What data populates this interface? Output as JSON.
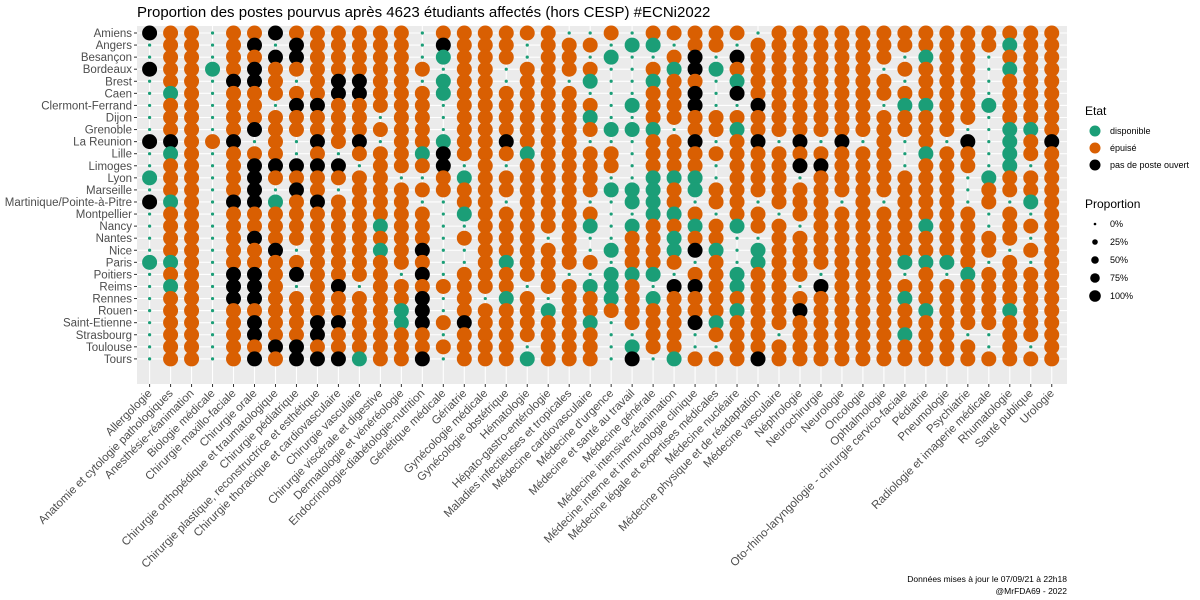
{
  "chart_data": {
    "type": "scatter",
    "title": "Proportion des postes pourvus après 4623 étudiants affectés (hors CESP) #ECNi2022",
    "xlabel": "",
    "ylabel": "",
    "cities": [
      "Amiens",
      "Angers",
      "Besançon",
      "Bordeaux",
      "Brest",
      "Caen",
      "Clermont-Ferrand",
      "Dijon",
      "Grenoble",
      "La Reunion",
      "Lille",
      "Limoges",
      "Lyon",
      "Marseille",
      "Martinique/Pointe-à-Pitre",
      "Montpellier",
      "Nancy",
      "Nantes",
      "Nice",
      "Paris",
      "Poitiers",
      "Reims",
      "Rennes",
      "Rouen",
      "Saint-Etienne",
      "Strasbourg",
      "Toulouse",
      "Tours"
    ],
    "specialties": [
      "Allergologie",
      "Anatomie et cytologie pathologiques",
      "Anesthésie-réanimation",
      "Biologie médicale",
      "Chirurgie maxillo-faciale",
      "Chirurgie orale",
      "Chirurgie orthopédique et traumatologique",
      "Chirurgie pédiatrique",
      "Chirurgie plastique, reconstructrice et esthétique",
      "Chirurgie thoracique et cardiovasculaire",
      "Chirurgie vasculaire",
      "Chirurgie viscérale et digestive",
      "Dermatologie et vénéréologie",
      "Endocrinologie-diabétologie-nutrition",
      "Génétique médicale",
      "Gériatrie",
      "Gynécologie médicale",
      "Gynécologie obstétrique",
      "Hématologie",
      "Hépato-gastro-entérologie",
      "Maladies infectieuses et tropicales",
      "Médecine cardiovasculaire",
      "Médecine d'urgence",
      "Médecine et santé au travail",
      "Médecine générale",
      "Médecine intensive-réanimation",
      "Médecine interne et immunologie clinique",
      "Médecine légale et expertises médicales",
      "Médecine nucléaire",
      "Médecine physique et de réadaptation",
      "Médecine vasculaire",
      "Néphrologie",
      "Neurochirurgie",
      "Neurologie",
      "Oncologie",
      "Ophtalmologie",
      "Oto-rhino-laryngologie - chirurgie cervico-faciale",
      "Pédiatrie",
      "Pneumologie",
      "Psychiatrie",
      "Radiologie et imagerie médicale",
      "Rhumatologie",
      "Santé publique",
      "Urologie"
    ],
    "states": [
      "disponible",
      "épuisé",
      "pas de poste ouvert"
    ],
    "state_colors": {
      "disponible": "#1b9e77",
      "épuisé": "#d95f02",
      "pas de poste ouvert": "#000000"
    },
    "size_legend": {
      "title": "Proportion",
      "labels": [
        "0%",
        "25%",
        "50%",
        "75%",
        "100%"
      ],
      "values": [
        0,
        0.25,
        0.5,
        0.75,
        1
      ]
    },
    "legend_title": "Etat",
    "grid": true,
    "legend_position": "right",
    "caption_line1": "Données mises à jour le 07/09/21 à 22h18",
    "caption_line2": "@MrFDA69 - 2022",
    "matrix_code": [
      "NEE.EENEEEEEE.EEEEEE..E.EEEEE.EEEEEEEEEEEEEE",
      ".EE.EN.NEEEEE.NEEE.EEE.DD.EE.EEEEEEEEEEEEDEE",
      ".EE.EENNEEEEE.DEEE.EE.D..EN.NEEEEEEE.DEE.EEE",
      "NEEDENEEEEEEEE.EE.EEEE..EDNDEEEEEEE.EEEE.DEE",
      ".EE.NNE.ENNEE.DEE.EE.D..DEE.DEEEEEEE.EEE.EEE",
      ".DE.EEEEENNEEEDEEEEEE...EEN.NEEEEEEEEEEE.EEE",
      ".EE.EE.NNEEEEE.EEEEEEE.DEEN..NEEEEE.DDEEDEEE",
      ".EE.EEEEEEE.EE.EEEEEED..EEEEEEEEEEEEEEEE.EEE",
      ".EE.ENEEEEEEEE.EEEEEEEDDD.EEDEEEEEEEEEE..DDE",
      "NNEEN.E.NEN.EEDEENEEE...EEN.EN.N.N.E.E.N.DEN",
      ".DE.EEE.E.EEEDNEEEDEEEE.EEEEEEEEEEEE.DEE.DEE",
      ".EE.ENNNNN.EEEN.E.EEEEE.EEE.EEENNEEE.EEE.D.E",
      "DEE.ENEEEEEE..EDEEEEEE..DDD.EEE.EEEEEEE.DEEE",
      ".EE.EN.NE.EEEEEEEEEEEEDDDEDEEEEEEEEEEEE.EEEE",
      "NDE.NNDENEEEE..EE.EEE..DDE.EE.EEE.E.EEE.E.DE",
      ".EE.EEEEEEEEEE.DEEEEEE..DDE.EE.EEEEEEEEE.E.E",
      ".EE.EEEEEEEDEE..EEEEED.DEEDEDEE.EEEEEDEE.EEE",
      ".EE.ENEEEEEEEE.EEEE.E..EEDEE..EEEEEEEEEEEE.E",
      ".EE.EEN.EEEDEN..EEEEE.DEEDND.DEEEEEEEEEEE.EE",
      "DDE.EEEEEEEEEE..EDEEEE.EEE.E.DEEEEEEDDDE.E.E",
      ".EE.NNENEEEE.N.EEEEE..DDD.EEDEEE.EEE.E.DEEEE",
      ".DE.NNE.EN.EEEEEEE.EEDDE.NNEDEE.NEEEEEEEEEEE",
      ".EE.NNEEEEEEEN.E.DE.EEDEDEEEEEEEEEEEDEEEEEEE",
      ".EE.EEEEEEEEDN.EEEEDEEEEEEEEDEENEEEEEDEEEDEE",
      ".EE.ENEENNEEDNENEEEEED.EEENDEEEEEEEEEEEEEEEE",
      ".EE.ENEENEEEEE.EEEEEEE..EE.EEE.EEEEEDEE..EEE",
      ".EE.EENNEEEEEEEEEE.EEE.DEE..EEEEEEEEEEEE.E.E",
      ".EE.ENENNNDEEN.EEEDEEE.N.DEEENEEEEEEEEEEEEEE"
    ]
  }
}
